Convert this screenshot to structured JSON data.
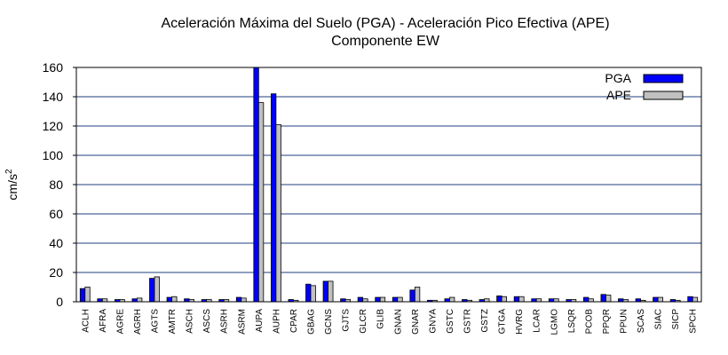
{
  "chart_data": {
    "type": "bar",
    "title_line1": "Aceleración Máxima del Suelo (PGA) -  Aceleración Pico Efectiva (APE)",
    "title_line2": "Componente EW",
    "ylabel": "cm/s",
    "ylabel_sup": "2",
    "xlabel": "",
    "ylim": [
      0,
      160
    ],
    "yticks": [
      0,
      20,
      40,
      60,
      80,
      100,
      120,
      140,
      160
    ],
    "grid": true,
    "legend_position": "top-right",
    "categories": [
      "ACLH",
      "AFRA",
      "AGRE",
      "AGRH",
      "AGTS",
      "AMTR",
      "ASCH",
      "ASCS",
      "ASRH",
      "ASRM",
      "AUPA",
      "AUPH",
      "CPAR",
      "GBAG",
      "GCNS",
      "GJTS",
      "GLCR",
      "GLIB",
      "GNAN",
      "GNAR",
      "GNYA",
      "GSTC",
      "GSTR",
      "GSTZ",
      "GTGA",
      "HVRG",
      "LCAR",
      "LGMO",
      "LSQR",
      "PCOB",
      "PPQR",
      "PPUN",
      "SCAS",
      "SIAC",
      "SICP",
      "SPCH"
    ],
    "series": [
      {
        "name": "PGA",
        "color": "#0000ff",
        "values": [
          9,
          2,
          1.5,
          2,
          16,
          3,
          2,
          1.5,
          1.5,
          3,
          160,
          142,
          1.5,
          12,
          14,
          2,
          3,
          3,
          3,
          8,
          1,
          2,
          1.5,
          1.5,
          4,
          3.5,
          2,
          2,
          1.5,
          3,
          5,
          2,
          2,
          3,
          1.5,
          3.5
        ]
      },
      {
        "name": "APE",
        "color": "#c0c0c0",
        "values": [
          10,
          2,
          1.5,
          2.5,
          17,
          3.5,
          1.5,
          1.5,
          1.5,
          2.5,
          136,
          121,
          1,
          11,
          14,
          1.5,
          2,
          3,
          3,
          10,
          1,
          3,
          1,
          2,
          3.5,
          3.5,
          2,
          2,
          1.5,
          2,
          4.5,
          1.5,
          1,
          3,
          1,
          3
        ]
      }
    ]
  }
}
